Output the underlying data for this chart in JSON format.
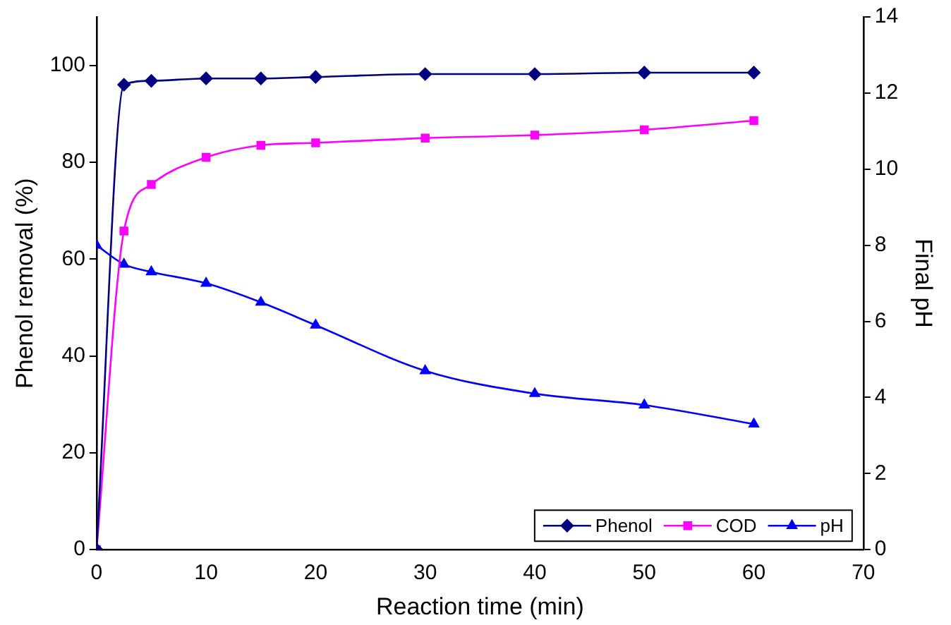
{
  "chart_data": {
    "type": "line",
    "xlabel": "Reaction time (min)",
    "ylabel": "Phenol removal (%)",
    "y2label": "Final pH",
    "x": [
      0,
      2.5,
      5,
      10,
      15,
      20,
      30,
      40,
      50,
      60
    ],
    "xlim": [
      0,
      70
    ],
    "xticks": [
      0,
      10,
      20,
      30,
      40,
      50,
      60,
      70
    ],
    "ylim": [
      0,
      110
    ],
    "yticks": [
      0,
      20,
      40,
      60,
      80,
      100
    ],
    "y2lim": [
      0,
      14
    ],
    "y2ticks": [
      0,
      2,
      4,
      6,
      8,
      10,
      12,
      14
    ],
    "grid": false,
    "legend": "bottom right",
    "series": [
      {
        "name": "Phenol",
        "color": "#000080",
        "marker": "diamond",
        "values": [
          0,
          96,
          96.8,
          97.3,
          97.3,
          97.6,
          98.2,
          98.2,
          98.5,
          98.5
        ]
      },
      {
        "name": "COD",
        "color": "#ff00ff",
        "marker": "square",
        "values": [
          0,
          65.8,
          75.4,
          81,
          83.5,
          84,
          85,
          85.6,
          86.7,
          88.6
        ]
      },
      {
        "name": "pH",
        "color": "#0000ff",
        "marker": "triangle",
        "axis": "y2",
        "values": [
          8.0,
          7.5,
          7.3,
          7.0,
          6.5,
          5.9,
          4.7,
          4.1,
          3.8,
          3.3
        ]
      }
    ]
  }
}
